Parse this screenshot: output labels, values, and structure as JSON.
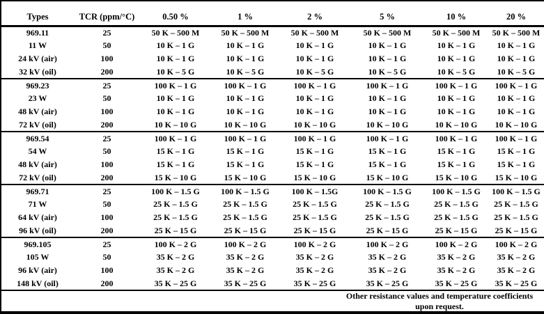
{
  "colors": {
    "border": "#000000",
    "background": "#ffffff",
    "text": "#000000"
  },
  "table": {
    "headers": [
      "Types",
      "TCR (ppm/°C)",
      "0.50 %",
      "1 %",
      "2 %",
      "5 %",
      "10 %",
      "20 %"
    ],
    "groups": [
      {
        "rows": [
          [
            "969.11",
            "25",
            "50 K – 500 M",
            "50 K – 500 M",
            "50 K – 500 M",
            "50 K – 500 M",
            "50 K – 500 M",
            "50 K – 500 M"
          ],
          [
            "11 W",
            "50",
            "10 K – 1 G",
            "10 K – 1 G",
            "10 K – 1 G",
            "10 K – 1 G",
            "10 K – 1 G",
            "10 K – 1 G"
          ],
          [
            "24 kV (air)",
            "100",
            "10 K – 1 G",
            "10 K – 1 G",
            "10 K – 1 G",
            "10 K – 1 G",
            "10 K – 1 G",
            "10 K – 1 G"
          ],
          [
            "32 kV (oil)",
            "200",
            "10 K – 5 G",
            "10 K – 5 G",
            "10 K – 5 G",
            "10 K – 5 G",
            "10 K – 5 G",
            "10 K – 5 G"
          ]
        ]
      },
      {
        "rows": [
          [
            "969.23",
            "25",
            "100 K – 1 G",
            "100 K – 1 G",
            "100 K – 1 G",
            "100 K – 1 G",
            "100 K – 1 G",
            "100 K – 1 G"
          ],
          [
            "23 W",
            "50",
            "10 K – 1 G",
            "10 K – 1 G",
            "10 K – 1 G",
            "10 K – 1 G",
            "10 K – 1 G",
            "10 K – 1 G"
          ],
          [
            "48 kV (air)",
            "100",
            "10 K – 1 G",
            "10 K – 1 G",
            "10 K – 1 G",
            "10 K – 1 G",
            "10 K – 1 G",
            "10 K – 1 G"
          ],
          [
            "72 kV (oil)",
            "200",
            "10 K – 10 G",
            "10 K – 10 G",
            "10 K – 10 G",
            "10 K – 10 G",
            "10 K – 10 G",
            "10 K – 10 G"
          ]
        ]
      },
      {
        "rows": [
          [
            "969.54",
            "25",
            "100 K – 1 G",
            "100 K – 1 G",
            "100 K – 1 G",
            "100 K – 1 G",
            "100 K – 1 G",
            "100 K – 1 G"
          ],
          [
            "54 W",
            "50",
            "15 K – 1 G",
            "15 K – 1 G",
            "15 K – 1 G",
            "15 K – 1 G",
            "15 K – 1 G",
            "15 K – 1 G"
          ],
          [
            "48 kV (air)",
            "100",
            "15 K – 1 G",
            "15 K – 1 G",
            "15 K – 1 G",
            "15 K – 1 G",
            "15 K – 1 G",
            "15 K – 1 G"
          ],
          [
            "72 kV (oil)",
            "200",
            "15 K – 10 G",
            "15 K – 10 G",
            "15 K – 10 G",
            "15 K – 10 G",
            "15 K – 10 G",
            "15 K – 10 G"
          ]
        ]
      },
      {
        "rows": [
          [
            "969.71",
            "25",
            "100 K – 1.5 G",
            "100 K – 1.5 G",
            "100 K – 1.5G",
            "100 K – 1.5 G",
            "100 K – 1.5 G",
            "100 K – 1.5 G"
          ],
          [
            "71 W",
            "50",
            "25 K – 1.5 G",
            "25 K – 1.5 G",
            "25 K – 1.5 G",
            "25 K – 1.5 G",
            "25 K – 1.5 G",
            "25 K – 1.5 G"
          ],
          [
            "64 kV (air)",
            "100",
            "25 K – 1.5 G",
            "25 K – 1.5 G",
            "25 K – 1.5 G",
            "25 K – 1.5 G",
            "25 K – 1.5 G",
            "25 K – 1.5 G"
          ],
          [
            "96 kV (oil)",
            "200",
            "25 K – 15 G",
            "25 K – 15 G",
            "25 K – 15 G",
            "25 K – 15 G",
            "25 K – 15 G",
            "25 K – 15 G"
          ]
        ]
      },
      {
        "rows": [
          [
            "969.105",
            "25",
            "100 K – 2 G",
            "100 K – 2 G",
            "100 K – 2 G",
            "100 K – 2 G",
            "100 K – 2 G",
            "100 K – 2 G"
          ],
          [
            "105 W",
            "50",
            "35 K – 2 G",
            "35 K – 2 G",
            "35 K – 2 G",
            "35 K – 2 G",
            "35 K – 2 G",
            "35 K – 2 G"
          ],
          [
            "96 kV (air)",
            "100",
            "35 K – 2 G",
            "35 K – 2 G",
            "35 K – 2 G",
            "35 K – 2 G",
            "35 K – 2 G",
            "35 K – 2 G"
          ],
          [
            "148 kV (oil)",
            "200",
            "35 K – 25 G",
            "35 K – 25 G",
            "35 K – 25 G",
            "35 K – 25 G",
            "35 K – 25 G",
            "35 K – 25 G"
          ]
        ]
      }
    ],
    "footer": {
      "line1": "Other resistance values and temperature coefficients",
      "line2": "upon request."
    }
  }
}
